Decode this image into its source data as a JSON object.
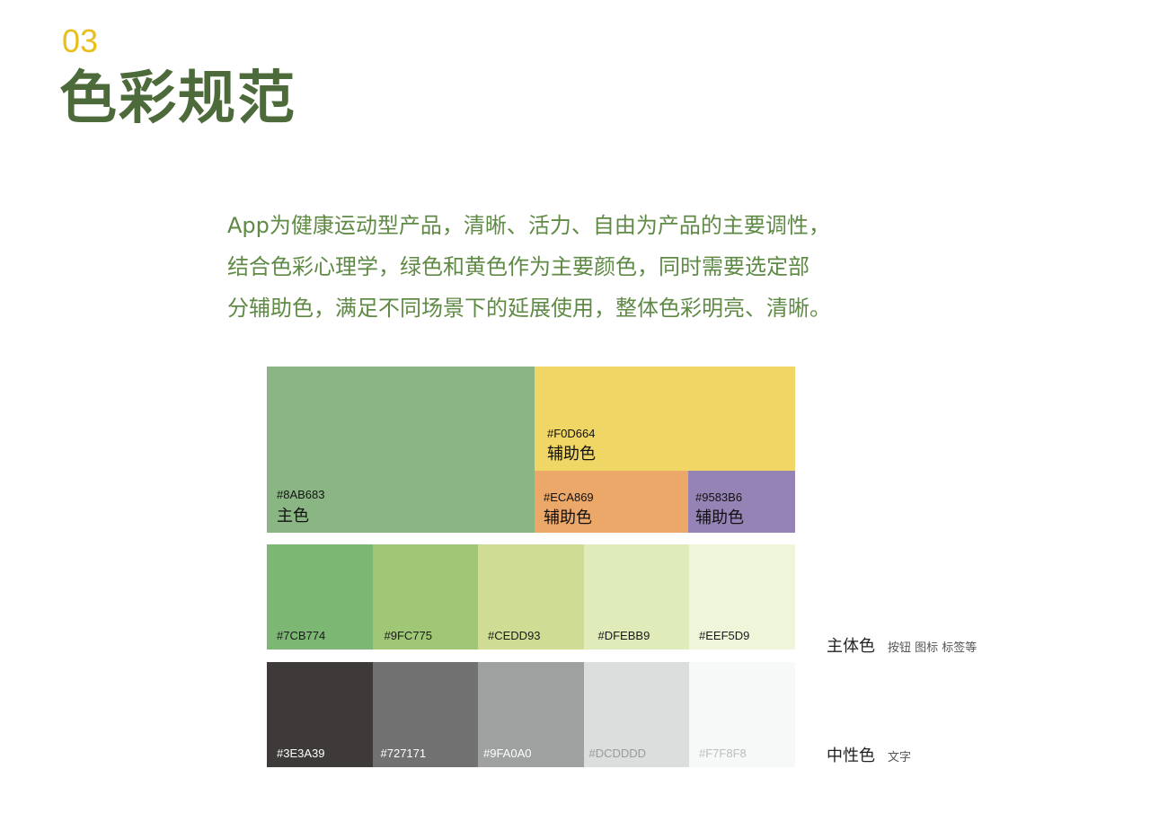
{
  "header": {
    "section_number": "03",
    "title": "色彩规范"
  },
  "intro": {
    "lines": [
      "App为健康运动型产品，清晰、活力、自由为产品的主要调性，",
      "结合色彩心理学，绿色和黄色作为主要颜色，同时需要选定部",
      "分辅助色，满足不同场景下的延展使用，整体色彩明亮、清晰。"
    ]
  },
  "main_palette": {
    "primary": {
      "hex": "#8AB683",
      "role": "主色",
      "color": "#8AB683"
    },
    "aux1": {
      "hex": "#F0D664",
      "role": "辅助色",
      "color": "#F0D664"
    },
    "aux2": {
      "hex": "#ECA869",
      "role": "辅助色",
      "color": "#ECA869"
    },
    "aux3": {
      "hex": "#9583B6",
      "role": "辅助色",
      "color": "#9583B6"
    }
  },
  "main_tones": {
    "swatches": [
      {
        "hex": "#7CB774",
        "color": "#7CB774",
        "text_color": "#1a1a1a"
      },
      {
        "hex": "#9FC775",
        "color": "#9FC775",
        "text_color": "#1a1a1a"
      },
      {
        "hex": "#CEDD93",
        "color": "#CEDD93",
        "text_color": "#1a1a1a"
      },
      {
        "hex": "#DFEBB9",
        "color": "#DFEBB9",
        "text_color": "#1a1a1a"
      },
      {
        "hex": "#EEF5D9",
        "color": "#EEF5D9",
        "text_color": "#1a1a1a"
      }
    ],
    "legend_title": "主体色",
    "legend_desc": "按钮 图标 标签等"
  },
  "neutral_tones": {
    "swatches": [
      {
        "hex": "#3E3A39",
        "color": "#3E3A39",
        "text_color": "#ffffff"
      },
      {
        "hex": "#727171",
        "color": "#727171",
        "text_color": "#ffffff"
      },
      {
        "hex": "#9FA0A0",
        "color": "#9FA0A0",
        "text_color": "#ffffff"
      },
      {
        "hex": "#DCDDDD",
        "color": "#DCDDDD",
        "text_color": "#9a9a9a"
      },
      {
        "hex": "#F7F8F8",
        "color": "#F7F8F8",
        "text_color": "#bdbdbd"
      }
    ],
    "legend_title": "中性色",
    "legend_desc": "文字"
  },
  "colors": {
    "section_number": "#E8BF1A",
    "title": "#4D6B3A",
    "intro_text": "#5F8A45"
  }
}
